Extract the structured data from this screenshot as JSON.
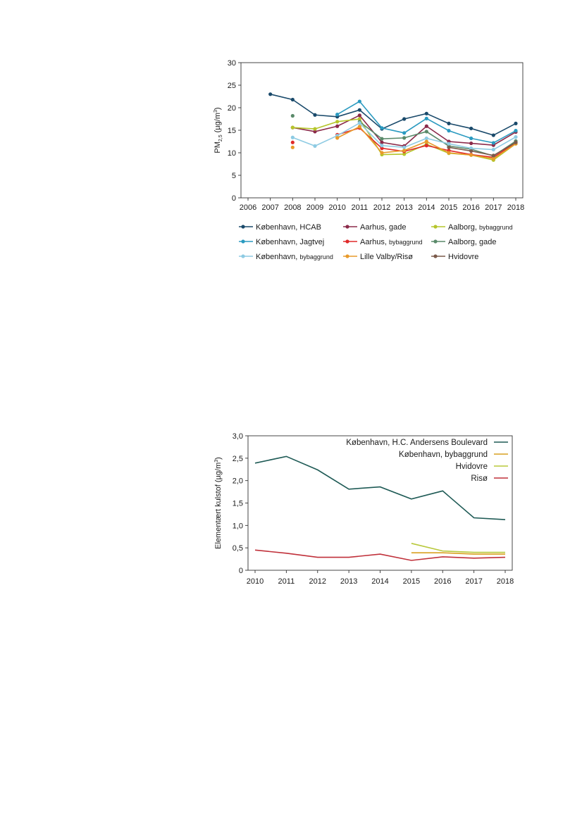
{
  "chart_data": [
    {
      "type": "line",
      "title": "",
      "xlabel": "",
      "ylabel": {
        "base": "PM",
        "sub": "2,5",
        "unit": " (µg/m",
        "sup": "3",
        "close": ")"
      },
      "ylim": [
        0,
        30
      ],
      "yticks": [
        0,
        5,
        10,
        15,
        20,
        25,
        30
      ],
      "x": [
        2006,
        2007,
        2008,
        2009,
        2010,
        2011,
        2012,
        2013,
        2014,
        2015,
        2016,
        2017,
        2018
      ],
      "grid": false,
      "legend_position": "bottom",
      "series": [
        {
          "name": "København, HCAB",
          "color": "#1a4a6b",
          "values": [
            null,
            23.0,
            21.8,
            18.4,
            18.0,
            19.5,
            15.3,
            17.5,
            18.7,
            16.5,
            15.4,
            13.9,
            16.5
          ]
        },
        {
          "name": "Aarhus, gade",
          "color": "#8b2a4a",
          "values": [
            null,
            null,
            15.6,
            14.7,
            15.9,
            18.3,
            12.3,
            11.5,
            15.9,
            12.5,
            12.1,
            11.7,
            14.6
          ]
        },
        {
          "name": "Aalborg, ",
          "name_small": "bybaggrund",
          "color": "#b5c52a",
          "values": [
            null,
            null,
            15.6,
            15.3,
            16.9,
            17.5,
            9.6,
            9.7,
            11.9,
            9.9,
            9.5,
            8.4,
            12.0
          ]
        },
        {
          "name": "København, Jagtvej",
          "color": "#2a9ac0",
          "values": [
            null,
            null,
            null,
            null,
            18.5,
            21.4,
            15.5,
            14.4,
            17.6,
            14.9,
            13.2,
            12.2,
            14.9
          ]
        },
        {
          "name": "Aarhus, ",
          "name_small": "bybaggrund",
          "color": "#e02a2a",
          "values": [
            null,
            null,
            12.3,
            null,
            14.0,
            15.5,
            11.0,
            10.3,
            11.6,
            10.5,
            9.6,
            9.0,
            12.2
          ]
        },
        {
          "name": "Aalborg, gade",
          "color": "#5a8a6a",
          "values": [
            null,
            null,
            18.2,
            null,
            null,
            16.9,
            13.1,
            13.3,
            14.7,
            11.5,
            10.8,
            9.3,
            12.6
          ]
        },
        {
          "name": "København, ",
          "name_small": "bybaggrund",
          "color": "#8ecbe3",
          "values": [
            null,
            null,
            13.4,
            11.5,
            13.8,
            16.6,
            11.6,
            11.2,
            13.2,
            12.0,
            11.0,
            10.7,
            13.5
          ]
        },
        {
          "name": "Lille Valby/Risø",
          "color": "#e89a2a",
          "values": [
            null,
            null,
            11.2,
            null,
            13.3,
            15.8,
            10.0,
            10.5,
            12.5,
            10.0,
            9.5,
            8.7,
            12.0
          ]
        },
        {
          "name": "Hvidovre",
          "color": "#7a5a4a",
          "values": [
            null,
            null,
            null,
            null,
            null,
            null,
            null,
            null,
            null,
            11.2,
            10.4,
            9.4,
            12.3
          ]
        }
      ]
    },
    {
      "type": "line",
      "title": "",
      "xlabel": "",
      "ylabel": {
        "base": "Elementært kulstof (µg/m",
        "sup": "3",
        "close": ")"
      },
      "ylim": [
        0,
        3
      ],
      "yticks": [
        "0",
        "0,5",
        "1,0",
        "1,5",
        "2,0",
        "2,5",
        "3,0"
      ],
      "ytick_values": [
        0,
        0.5,
        1.0,
        1.5,
        2.0,
        2.5,
        3.0
      ],
      "x": [
        2010,
        2011,
        2012,
        2013,
        2014,
        2015,
        2016,
        2017,
        2018
      ],
      "grid": false,
      "legend_position": "top-right",
      "series": [
        {
          "name": "København, H.C. Andersens Boulevard",
          "color": "#1e5a55",
          "values": [
            2.39,
            2.54,
            2.24,
            1.81,
            1.86,
            1.59,
            1.77,
            1.17,
            1.13
          ]
        },
        {
          "name": "København, bybaggrund",
          "color": "#d9a020",
          "values": [
            null,
            null,
            null,
            null,
            null,
            0.39,
            0.39,
            0.36,
            0.36
          ]
        },
        {
          "name": "Hvidovre",
          "color": "#b8c83a",
          "values": [
            null,
            null,
            null,
            null,
            null,
            0.6,
            0.43,
            0.4,
            0.4
          ]
        },
        {
          "name": "Risø",
          "color": "#c0303a",
          "values": [
            0.45,
            0.38,
            0.29,
            0.29,
            0.36,
            0.22,
            0.3,
            0.27,
            0.29
          ]
        }
      ]
    }
  ]
}
